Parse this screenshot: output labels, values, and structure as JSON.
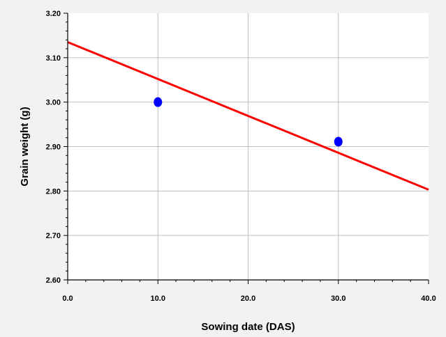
{
  "chart_data": {
    "type": "scatter",
    "xlabel": "Sowing date (DAS)",
    "ylabel": "Grain weight (g)",
    "xlim": [
      0,
      40
    ],
    "ylim": [
      2.6,
      3.2
    ],
    "x_ticks": [
      "0.0",
      "10.0",
      "20.0",
      "30.0",
      "40.0"
    ],
    "y_ticks": [
      "2.60",
      "2.70",
      "2.80",
      "2.90",
      "3.00",
      "3.10",
      "3.20"
    ],
    "grid": true,
    "points": [
      {
        "x": 10,
        "y": 3.0
      },
      {
        "x": 30,
        "y": 2.911
      }
    ],
    "fit_line": {
      "x": [
        0,
        40
      ],
      "y": [
        3.135,
        2.803
      ]
    },
    "colors": {
      "points": "#0000ff",
      "fit_line": "#ff0000",
      "background": "#f2f2f2",
      "plot_area": "#ffffff",
      "grid": "#c0c0c0"
    }
  }
}
